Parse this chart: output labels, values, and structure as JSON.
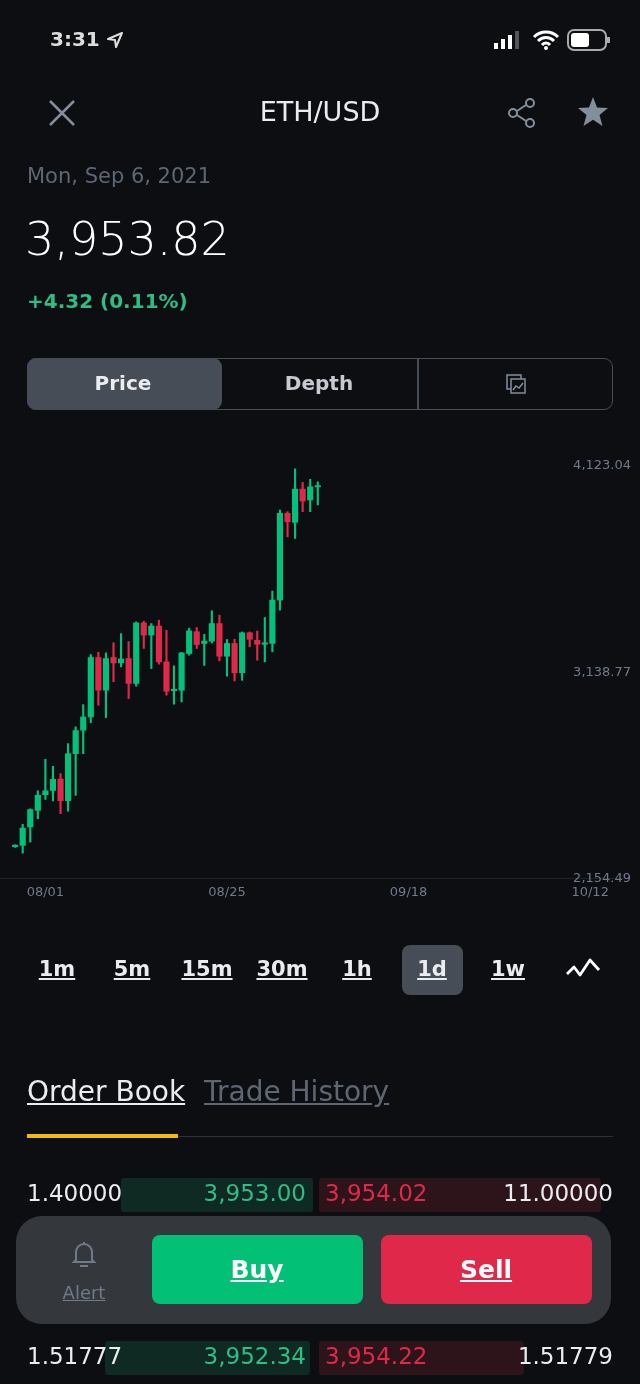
{
  "chart_data": {
    "type": "candlestick",
    "title": "ETH/USD",
    "subtitle": "Mon, Sep 6, 2021",
    "x": [
      "2021-07-28",
      "2021-07-29",
      "2021-07-30",
      "2021-07-31",
      "2021-08-01",
      "2021-08-02",
      "2021-08-03",
      "2021-08-04",
      "2021-08-05",
      "2021-08-06",
      "2021-08-07",
      "2021-08-08",
      "2021-08-09",
      "2021-08-10",
      "2021-08-11",
      "2021-08-12",
      "2021-08-13",
      "2021-08-14",
      "2021-08-15",
      "2021-08-16",
      "2021-08-17",
      "2021-08-18",
      "2021-08-19",
      "2021-08-20",
      "2021-08-21",
      "2021-08-22",
      "2021-08-23",
      "2021-08-24",
      "2021-08-25",
      "2021-08-26",
      "2021-08-27",
      "2021-08-28",
      "2021-08-29",
      "2021-08-30",
      "2021-08-31",
      "2021-09-01",
      "2021-09-02",
      "2021-09-03",
      "2021-09-04",
      "2021-09-05",
      "2021-09-06"
    ],
    "ohlc": [
      [
        2306,
        2315,
        2302,
        2312
      ],
      [
        2312,
        2412,
        2275,
        2395
      ],
      [
        2400,
        2487,
        2328,
        2483
      ],
      [
        2479,
        2572,
        2440,
        2551
      ],
      [
        2554,
        2723,
        2532,
        2573
      ],
      [
        2575,
        2690,
        2524,
        2627
      ],
      [
        2629,
        2655,
        2463,
        2525
      ],
      [
        2525,
        2798,
        2475,
        2750
      ],
      [
        2750,
        2878,
        2551,
        2860
      ],
      [
        2862,
        2984,
        2750,
        2925
      ],
      [
        2925,
        3223,
        2898,
        3209
      ],
      [
        3209,
        3234,
        2981,
        3053
      ],
      [
        3053,
        3231,
        2922,
        3204
      ],
      [
        3209,
        3279,
        3093,
        3183
      ],
      [
        3183,
        3323,
        3164,
        3202
      ],
      [
        3204,
        3285,
        3013,
        3085
      ],
      [
        3085,
        3379,
        3072,
        3374
      ],
      [
        3374,
        3382,
        3252,
        3316
      ],
      [
        3316,
        3371,
        3156,
        3359
      ],
      [
        3359,
        3387,
        3177,
        3188
      ],
      [
        3188,
        3339,
        3029,
        3048
      ],
      [
        3050,
        3169,
        2986,
        3056
      ],
      [
        3053,
        3233,
        2997,
        3231
      ],
      [
        3228,
        3349,
        3220,
        3336
      ],
      [
        3332,
        3352,
        3252,
        3271
      ],
      [
        3276,
        3320,
        3171,
        3287
      ],
      [
        3287,
        3432,
        3279,
        3371
      ],
      [
        3371,
        3411,
        3193,
        3215
      ],
      [
        3215,
        3295,
        3120,
        3276
      ],
      [
        3276,
        3296,
        3097,
        3136
      ],
      [
        3136,
        3331,
        3100,
        3327
      ],
      [
        3327,
        3331,
        3260,
        3296
      ],
      [
        3291,
        3335,
        3196,
        3272
      ],
      [
        3272,
        3400,
        3188,
        3277
      ],
      [
        3276,
        3526,
        3236,
        3483
      ],
      [
        3483,
        3913,
        3435,
        3897
      ],
      [
        3897,
        3905,
        3785,
        3857
      ],
      [
        3854,
        4109,
        3777,
        4013
      ],
      [
        4013,
        4045,
        3905,
        3956
      ],
      [
        3961,
        4059,
        3905,
        4024
      ],
      [
        4023,
        4048,
        3937,
        4027
      ]
    ],
    "colors": [
      "#03c07c",
      "#03c07c",
      "#03c07c",
      "#03c07c",
      "#03c07c",
      "#03c07c",
      "#e0294a",
      "#03c07c",
      "#03c07c",
      "#03c07c",
      "#03c07c",
      "#e0294a",
      "#03c07c",
      "#e0294a",
      "#03c07c",
      "#e0294a",
      "#03c07c",
      "#e0294a",
      "#03c07c",
      "#e0294a",
      "#e0294a",
      "#03c07c",
      "#03c07c",
      "#03c07c",
      "#e0294a",
      "#03c07c",
      "#03c07c",
      "#e0294a",
      "#03c07c",
      "#e0294a",
      "#03c07c",
      "#e0294a",
      "#e0294a",
      "#03c07c",
      "#03c07c",
      "#03c07c",
      "#e0294a",
      "#03c07c",
      "#e0294a",
      "#03c07c",
      "#03c07c"
    ],
    "xlim": [
      "2021-07-26",
      "2021-10-17"
    ],
    "xticks": [
      {
        "value": "2021-08-01",
        "label": "08/01"
      },
      {
        "value": "2021-08-25",
        "label": "08/25"
      },
      {
        "value": "2021-09-18",
        "label": "09/18"
      },
      {
        "value": "2021-10-12",
        "label": "10/12"
      }
    ],
    "ylim": [
      2154.49,
      4123.04
    ],
    "yticks": [
      {
        "value": 2154.49,
        "label": "2,154.49"
      },
      {
        "value": 3138.77,
        "label": "3,138.77"
      },
      {
        "value": 4123.04,
        "label": "4,123.04"
      }
    ],
    "annotations": [
      "3:31",
      "3,953.82",
      "+4.32 (0.11%)",
      "Price",
      "Depth",
      "1m",
      "5m",
      "15m",
      "30m",
      "1h",
      "1d",
      "1w",
      "Order Book",
      "Trade History",
      "1.40000",
      "3,953.00",
      "3,954.02",
      "11.00000",
      "1.51777",
      "3,952.34",
      "3,954.22",
      "1.51779",
      "Alert",
      "Buy",
      "Sell"
    ]
  }
}
